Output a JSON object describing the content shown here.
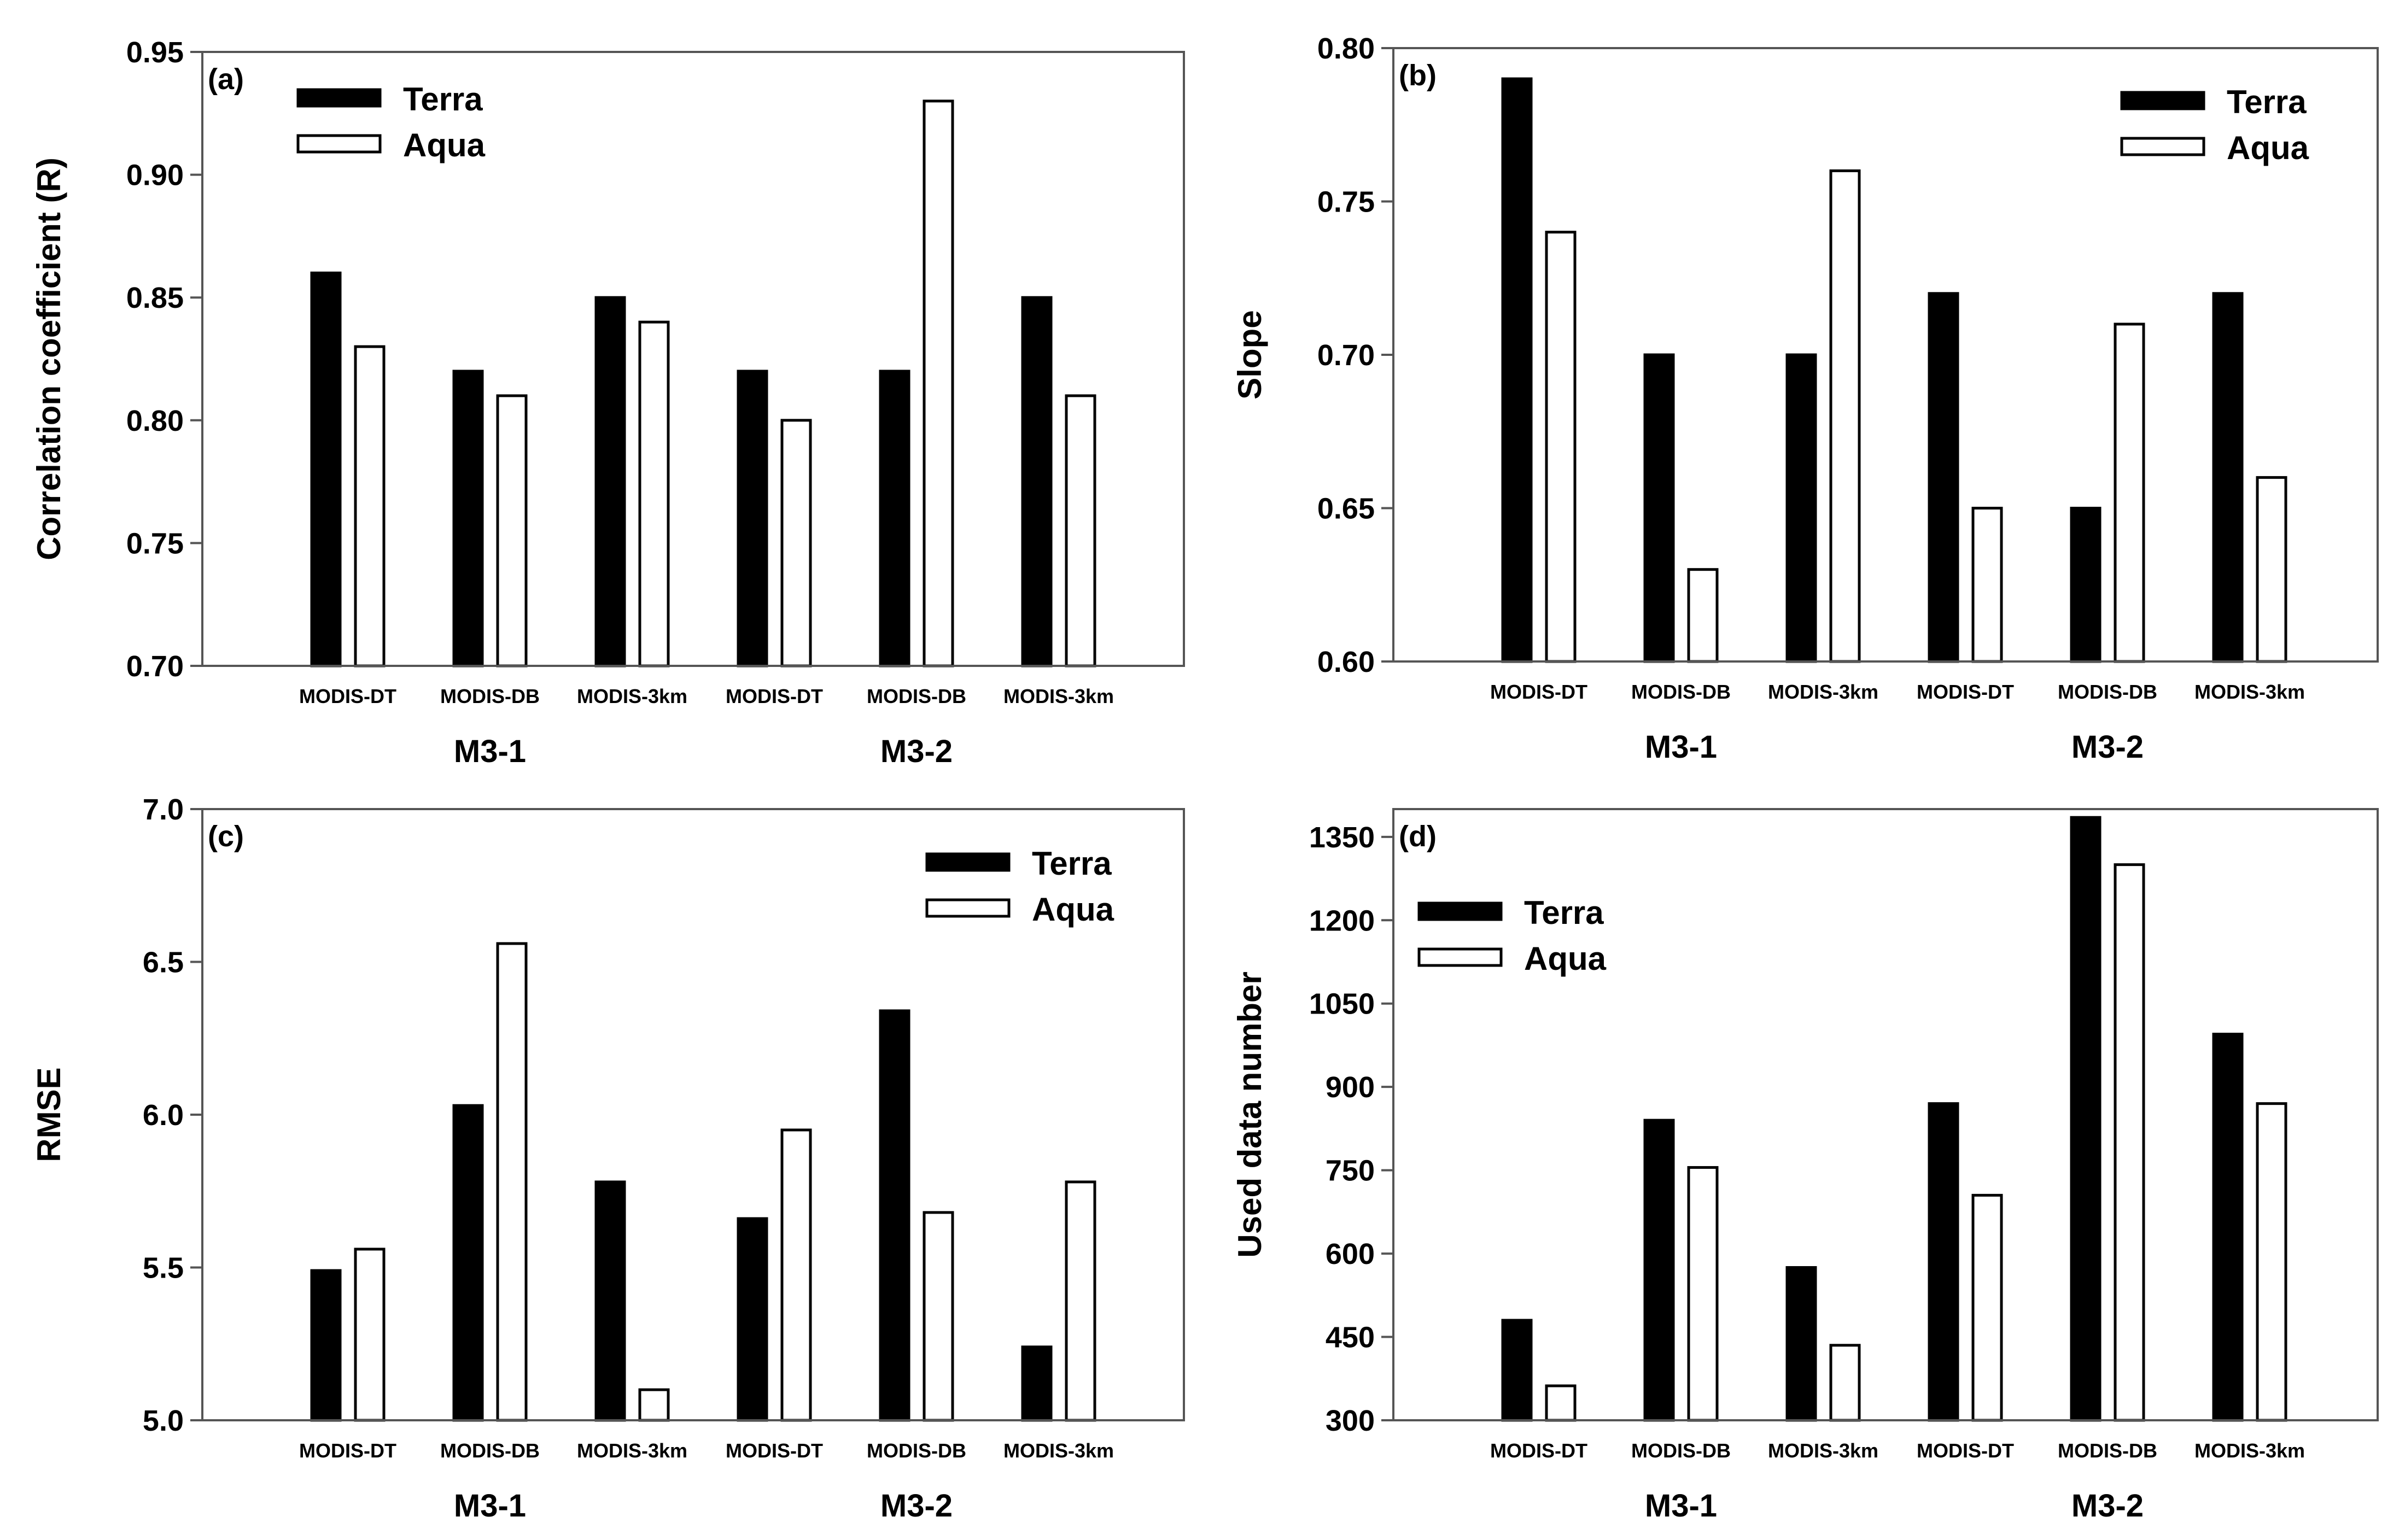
{
  "figure": {
    "series_names": [
      "Terra",
      "Aqua"
    ],
    "series_colors": [
      "#000000",
      "#ffffff"
    ]
  },
  "chart_data": [
    {
      "type": "bar",
      "panel_label": "(a)",
      "ylabel": "Correlation coefficient (R)",
      "xlabel": "",
      "ylim": [
        0.7,
        0.95
      ],
      "yticks": [
        "0.70",
        "0.75",
        "0.80",
        "0.85",
        "0.90",
        "0.95"
      ],
      "categories": [
        "MODIS-DT",
        "MODIS-DB",
        "MODIS-3km",
        "MODIS-DT",
        "MODIS-DB",
        "MODIS-3km"
      ],
      "groups": [
        "M3-1",
        "M3-2"
      ],
      "legend_position": "top-left",
      "series": [
        {
          "name": "Terra",
          "values": [
            0.86,
            0.82,
            0.85,
            0.82,
            0.82,
            0.85
          ]
        },
        {
          "name": "Aqua",
          "values": [
            0.83,
            0.81,
            0.84,
            0.8,
            0.93,
            0.81
          ]
        }
      ]
    },
    {
      "type": "bar",
      "panel_label": "(b)",
      "ylabel": "Slope",
      "xlabel": "",
      "ylim": [
        0.6,
        0.8
      ],
      "yticks": [
        "0.60",
        "0.65",
        "0.70",
        "0.75",
        "0.80"
      ],
      "categories": [
        "MODIS-DT",
        "MODIS-DB",
        "MODIS-3km",
        "MODIS-DT",
        "MODIS-DB",
        "MODIS-3km"
      ],
      "groups": [
        "M3-1",
        "M3-2"
      ],
      "legend_position": "top-right",
      "series": [
        {
          "name": "Terra",
          "values": [
            0.79,
            0.7,
            0.7,
            0.72,
            0.65,
            0.72
          ]
        },
        {
          "name": "Aqua",
          "values": [
            0.74,
            0.63,
            0.76,
            0.65,
            0.71,
            0.66
          ]
        }
      ]
    },
    {
      "type": "bar",
      "panel_label": "(c)",
      "ylabel": "RMSE",
      "xlabel": "",
      "ylim": [
        5.0,
        7.0
      ],
      "yticks": [
        "5.0",
        "5.5",
        "6.0",
        "6.5",
        "7.0"
      ],
      "categories": [
        "MODIS-DT",
        "MODIS-DB",
        "MODIS-3km",
        "MODIS-DT",
        "MODIS-DB",
        "MODIS-3km"
      ],
      "groups": [
        "M3-1",
        "M3-2"
      ],
      "legend_position": "top-right",
      "series": [
        {
          "name": "Terra",
          "values": [
            5.49,
            6.03,
            5.78,
            5.66,
            6.34,
            5.24
          ]
        },
        {
          "name": "Aqua",
          "values": [
            5.56,
            6.56,
            5.1,
            5.95,
            5.68,
            5.78
          ]
        }
      ]
    },
    {
      "type": "bar",
      "panel_label": "(d)",
      "ylabel": "Used data number",
      "xlabel": "",
      "ylim": [
        300,
        1400
      ],
      "yticks": [
        "300",
        "450",
        "600",
        "750",
        "900",
        "1050",
        "1200",
        "1350"
      ],
      "categories": [
        "MODIS-DT",
        "MODIS-DB",
        "MODIS-3km",
        "MODIS-DT",
        "MODIS-DB",
        "MODIS-3km"
      ],
      "groups": [
        "M3-1",
        "M3-2"
      ],
      "legend_position": "top-left",
      "series": [
        {
          "name": "Terra",
          "values": [
            480,
            840,
            575,
            870,
            1385,
            995
          ]
        },
        {
          "name": "Aqua",
          "values": [
            362,
            755,
            435,
            705,
            1300,
            870
          ]
        }
      ]
    }
  ]
}
